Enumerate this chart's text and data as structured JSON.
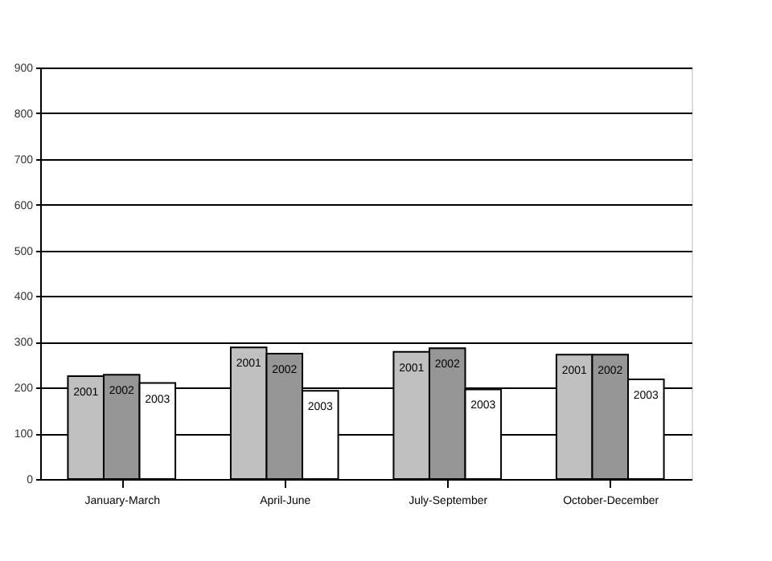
{
  "chart_data": {
    "type": "bar",
    "categories": [
      "January-March",
      "April-June",
      "July-September",
      "October-December"
    ],
    "series": [
      {
        "name": "2001",
        "color": "#c0c0c0",
        "values": [
          225,
          288,
          278,
          272
        ]
      },
      {
        "name": "2002",
        "color": "#969696",
        "values": [
          228,
          274,
          286,
          272
        ]
      },
      {
        "name": "2003",
        "color": "#ffffff",
        "values": [
          210,
          193,
          196,
          218
        ]
      }
    ],
    "ylim": [
      0,
      900
    ],
    "yticks": [
      0,
      100,
      200,
      300,
      400,
      500,
      600,
      700,
      800,
      900
    ],
    "grid": "y"
  }
}
